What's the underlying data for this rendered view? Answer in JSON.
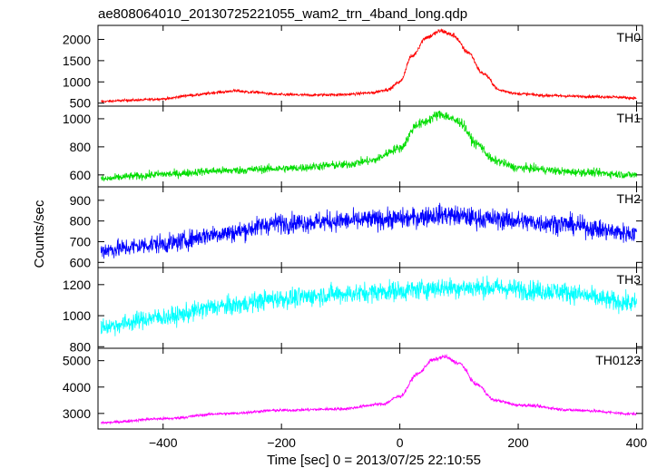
{
  "chart_data": {
    "type": "line",
    "title": "ae808064010_20130725221055_wam2_trn_4band_long.qdp",
    "xlabel": "Time [sec] 0 = 2013/07/25 22:10:55",
    "ylabel": "Counts/sec",
    "xlim": [
      -510,
      410
    ],
    "x_ticks": [
      -400,
      -200,
      0,
      200,
      400
    ],
    "x_tick_labels": [
      "−400",
      "−200",
      "0",
      "200",
      "400"
    ],
    "series": [
      {
        "name": "TH0",
        "color": "#ff0000",
        "ylim": [
          430,
          2330
        ],
        "y_ticks": [
          500,
          1000,
          1500,
          2000
        ],
        "noise": 28,
        "points": [
          [
            -505,
            540
          ],
          [
            -450,
            570
          ],
          [
            -400,
            600
          ],
          [
            -350,
            690
          ],
          [
            -300,
            760
          ],
          [
            -280,
            790
          ],
          [
            -250,
            760
          ],
          [
            -200,
            700
          ],
          [
            -150,
            690
          ],
          [
            -100,
            700
          ],
          [
            -50,
            740
          ],
          [
            -20,
            820
          ],
          [
            0,
            1000
          ],
          [
            20,
            1600
          ],
          [
            45,
            2050
          ],
          [
            70,
            2200
          ],
          [
            90,
            2100
          ],
          [
            115,
            1700
          ],
          [
            140,
            1200
          ],
          [
            170,
            800
          ],
          [
            200,
            720
          ],
          [
            250,
            680
          ],
          [
            300,
            660
          ],
          [
            350,
            650
          ],
          [
            400,
            620
          ]
        ]
      },
      {
        "name": "TH1",
        "color": "#00dd00",
        "ylim": [
          515,
          1090
        ],
        "y_ticks": [
          600,
          800,
          1000
        ],
        "noise": 26,
        "points": [
          [
            -505,
            570
          ],
          [
            -450,
            590
          ],
          [
            -400,
            605
          ],
          [
            -300,
            630
          ],
          [
            -200,
            645
          ],
          [
            -100,
            670
          ],
          [
            -50,
            700
          ],
          [
            0,
            790
          ],
          [
            30,
            960
          ],
          [
            70,
            1030
          ],
          [
            100,
            980
          ],
          [
            130,
            820
          ],
          [
            160,
            700
          ],
          [
            200,
            650
          ],
          [
            300,
            620
          ],
          [
            400,
            600
          ]
        ]
      },
      {
        "name": "TH2",
        "color": "#0000ff",
        "ylim": [
          575,
          965
        ],
        "y_ticks": [
          600,
          700,
          800,
          900
        ],
        "noise": 42,
        "points": [
          [
            -505,
            660
          ],
          [
            -400,
            690
          ],
          [
            -300,
            740
          ],
          [
            -200,
            790
          ],
          [
            -100,
            800
          ],
          [
            0,
            810
          ],
          [
            70,
            830
          ],
          [
            150,
            810
          ],
          [
            250,
            790
          ],
          [
            400,
            740
          ]
        ]
      },
      {
        "name": "TH3",
        "color": "#00ffff",
        "ylim": [
          790,
          1310
        ],
        "y_ticks": [
          800,
          1000,
          1200
        ],
        "noise": 55,
        "points": [
          [
            -505,
            930
          ],
          [
            -400,
            990
          ],
          [
            -300,
            1060
          ],
          [
            -200,
            1110
          ],
          [
            -100,
            1140
          ],
          [
            0,
            1160
          ],
          [
            70,
            1180
          ],
          [
            150,
            1180
          ],
          [
            250,
            1160
          ],
          [
            400,
            1080
          ]
        ]
      },
      {
        "name": "TH0123",
        "color": "#ff00ff",
        "ylim": [
          2410,
          5470
        ],
        "y_ticks": [
          3000,
          4000,
          5000
        ],
        "noise": 50,
        "points": [
          [
            -505,
            2650
          ],
          [
            -400,
            2800
          ],
          [
            -300,
            2990
          ],
          [
            -200,
            3120
          ],
          [
            -100,
            3170
          ],
          [
            -30,
            3350
          ],
          [
            0,
            3650
          ],
          [
            30,
            4500
          ],
          [
            55,
            5020
          ],
          [
            75,
            5150
          ],
          [
            100,
            4900
          ],
          [
            130,
            4100
          ],
          [
            160,
            3500
          ],
          [
            200,
            3320
          ],
          [
            300,
            3120
          ],
          [
            400,
            2980
          ]
        ]
      }
    ]
  }
}
